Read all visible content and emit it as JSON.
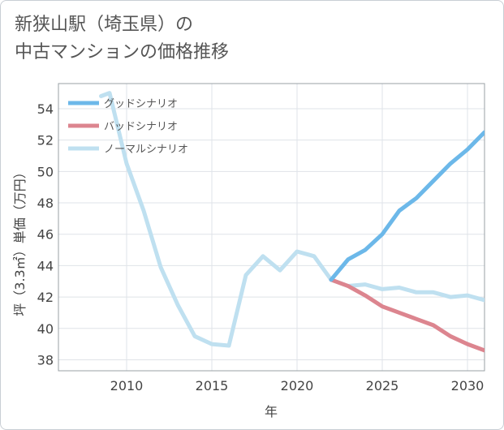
{
  "title": {
    "line1": "新狭山駅（埼玉県）の",
    "line2": "中古マンションの価格推移"
  },
  "chart_data": {
    "type": "line",
    "title": "新狭山駅（埼玉県）の中古マンションの価格推移",
    "xlabel": "年",
    "ylabel": "坪（3.3㎡）単価（万円）",
    "xlim": [
      2006,
      2031
    ],
    "ylim": [
      37.3,
      55.6
    ],
    "xticks": [
      2010,
      2015,
      2020,
      2025,
      2030
    ],
    "yticks": [
      38,
      40,
      42,
      44,
      46,
      48,
      50,
      52,
      54
    ],
    "grid": true,
    "legend_position": "top-left",
    "series": [
      {
        "name": "グッドシナリオ",
        "color": "#6cb8e9",
        "x": [
          2022,
          2023,
          2024,
          2025,
          2026,
          2027,
          2028,
          2029,
          2030,
          2031
        ],
        "y": [
          43.1,
          44.4,
          45.0,
          46.0,
          47.5,
          48.3,
          49.4,
          50.5,
          51.4,
          52.5
        ]
      },
      {
        "name": "バッドシナリオ",
        "color": "#dc858f",
        "x": [
          2022,
          2023,
          2024,
          2025,
          2026,
          2027,
          2028,
          2029,
          2030,
          2031
        ],
        "y": [
          43.1,
          42.7,
          42.1,
          41.4,
          41.0,
          40.6,
          40.2,
          39.5,
          39.0,
          38.6
        ]
      },
      {
        "name": "ノーマルシナリオ",
        "color": "#bfe0f0",
        "x": [
          2008.5,
          2009,
          2010,
          2011,
          2012,
          2013,
          2014,
          2015,
          2016,
          2017,
          2018,
          2019,
          2020,
          2021,
          2022,
          2023,
          2024,
          2025,
          2026,
          2027,
          2028,
          2029,
          2030,
          2031
        ],
        "y": [
          54.8,
          55.0,
          50.5,
          47.5,
          43.9,
          41.5,
          39.5,
          39.0,
          38.9,
          43.4,
          44.6,
          43.7,
          44.9,
          44.6,
          43.1,
          42.7,
          42.8,
          42.5,
          42.6,
          42.3,
          42.3,
          42.0,
          42.1,
          41.8
        ]
      }
    ]
  }
}
